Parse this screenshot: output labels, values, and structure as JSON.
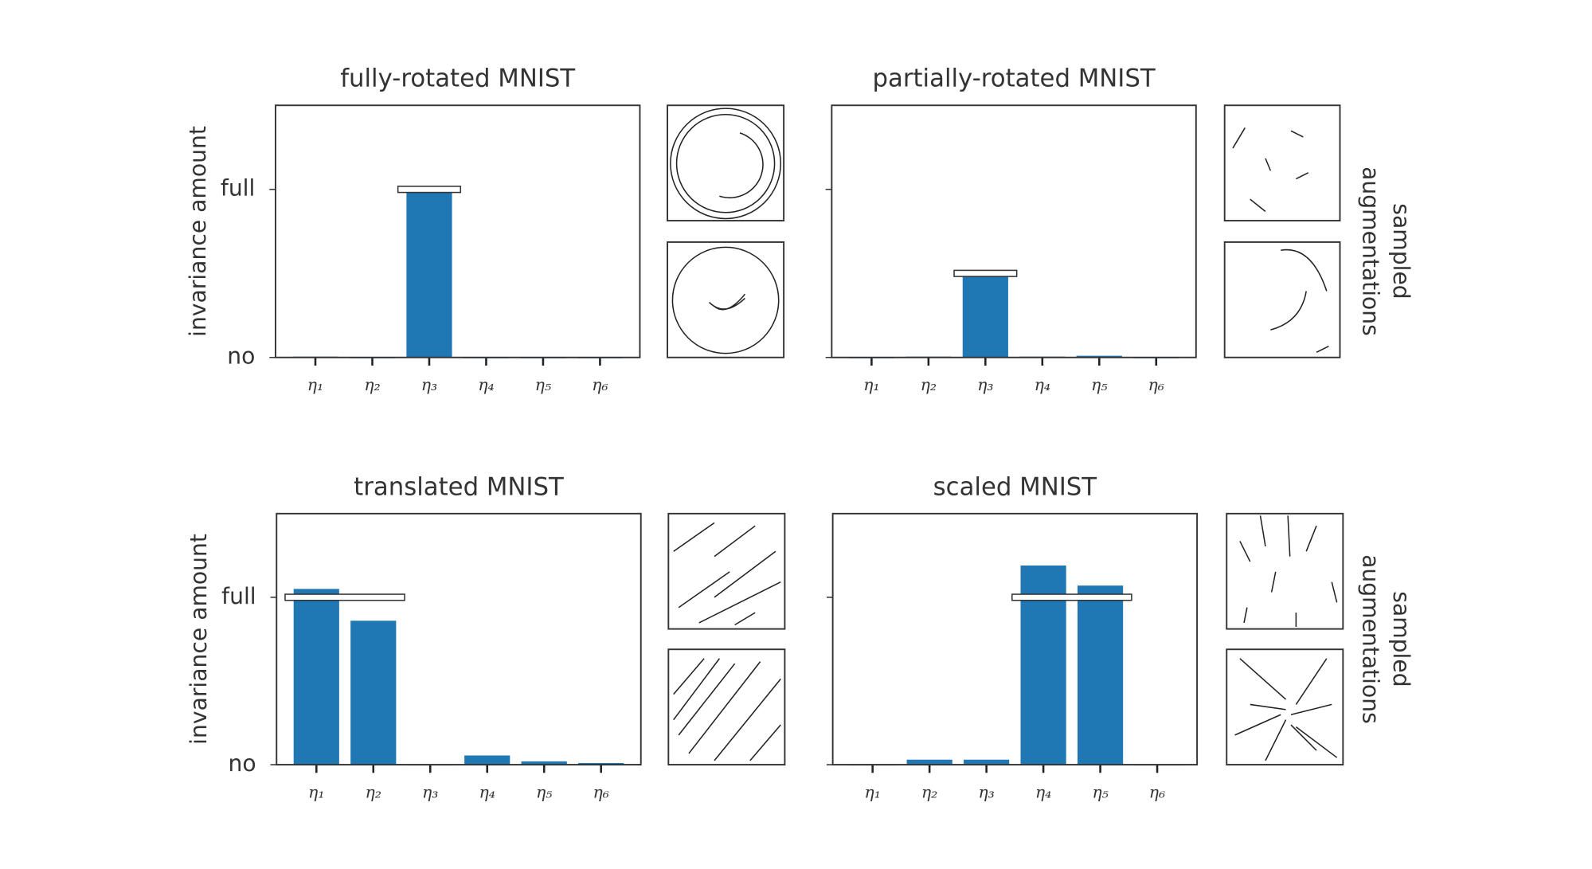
{
  "chart_data": [
    {
      "type": "bar",
      "title": "fully-rotated MNIST",
      "ylabel": "invariance amount",
      "categories": [
        "η₁",
        "η₂",
        "η₃",
        "η₄",
        "η₅",
        "η₆"
      ],
      "values": [
        0.005,
        0,
        0.99,
        0,
        0,
        0
      ],
      "color": "#1f77b4",
      "target": [
        null,
        null,
        1,
        null,
        null,
        null
      ],
      "target_color": "#ffffff",
      "ylim": [
        0,
        1.5
      ],
      "yticks": [
        {
          "value": 0,
          "label": "no"
        },
        {
          "value": 1,
          "label": "full"
        }
      ],
      "ytick_labels": true
    },
    {
      "type": "bar",
      "title": "partially-rotated MNIST",
      "side_label": [
        "sampled",
        "augmentations"
      ],
      "categories": [
        "η₁",
        "η₂",
        "η₃",
        "η₄",
        "η₅",
        "η₆"
      ],
      "values": [
        0,
        0.005,
        0.49,
        0.005,
        0.01,
        0
      ],
      "color": "#1f77b4",
      "target": [
        null,
        null,
        0.5,
        null,
        null,
        null
      ],
      "target_color": "#ffffff",
      "ylim": [
        0,
        1.5
      ],
      "yticks": [
        0,
        1
      ],
      "ytick_labels": false
    },
    {
      "type": "bar",
      "title": "translated MNIST",
      "ylabel": "invariance amount",
      "categories": [
        "η₁",
        "η₂",
        "η₃",
        "η₄",
        "η₅",
        "η₆"
      ],
      "values": [
        1.05,
        0.86,
        0,
        0.055,
        0.02,
        0.01
      ],
      "color": "#1f77b4",
      "target": [
        1,
        1,
        null,
        null,
        null,
        null
      ],
      "target_color": "#ffffff",
      "ylim": [
        0,
        1.5
      ],
      "yticks": [
        {
          "value": 0,
          "label": "no"
        },
        {
          "value": 1,
          "label": "full"
        }
      ],
      "ytick_labels": true
    },
    {
      "type": "bar",
      "title": "scaled MNIST",
      "side_label": [
        "sampled",
        "augmentations"
      ],
      "categories": [
        "η₁",
        "η₂",
        "η₃",
        "η₄",
        "η₅",
        "η₆"
      ],
      "values": [
        0,
        0.03,
        0.03,
        1.19,
        1.07,
        0
      ],
      "color": "#1f77b4",
      "target": [
        null,
        null,
        null,
        1,
        1,
        null
      ],
      "target_color": "#ffffff",
      "ylim": [
        0,
        1.5
      ],
      "yticks": [
        0,
        1
      ],
      "ytick_labels": false
    }
  ]
}
